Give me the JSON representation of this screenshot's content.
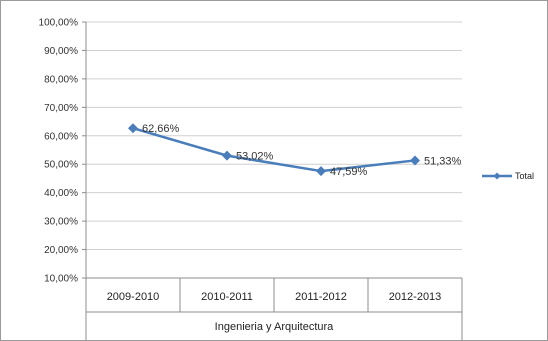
{
  "chart_data": {
    "type": "line",
    "title": "",
    "xlabel": "",
    "ylabel": "",
    "categories": [
      "2009-2010",
      "2010-2011",
      "2011-2012",
      "2012-2013"
    ],
    "group_label": "Ingenieria y Arquitectura",
    "series": [
      {
        "name": "Total",
        "values": [
          62.66,
          53.02,
          47.59,
          51.33
        ],
        "labels": [
          "62,66%",
          "53,02%",
          "47,59%",
          "51,33%"
        ],
        "color": "#4a7ebb"
      }
    ],
    "ylim": [
      10,
      100
    ],
    "yticks": [
      10,
      20,
      30,
      40,
      50,
      60,
      70,
      80,
      90,
      100
    ],
    "ytick_labels": [
      "10,00%",
      "20,00%",
      "30,00%",
      "40,00%",
      "50,00%",
      "60,00%",
      "70,00%",
      "80,00%",
      "90,00%",
      "100,00%"
    ],
    "grid": true,
    "legend": "right"
  }
}
